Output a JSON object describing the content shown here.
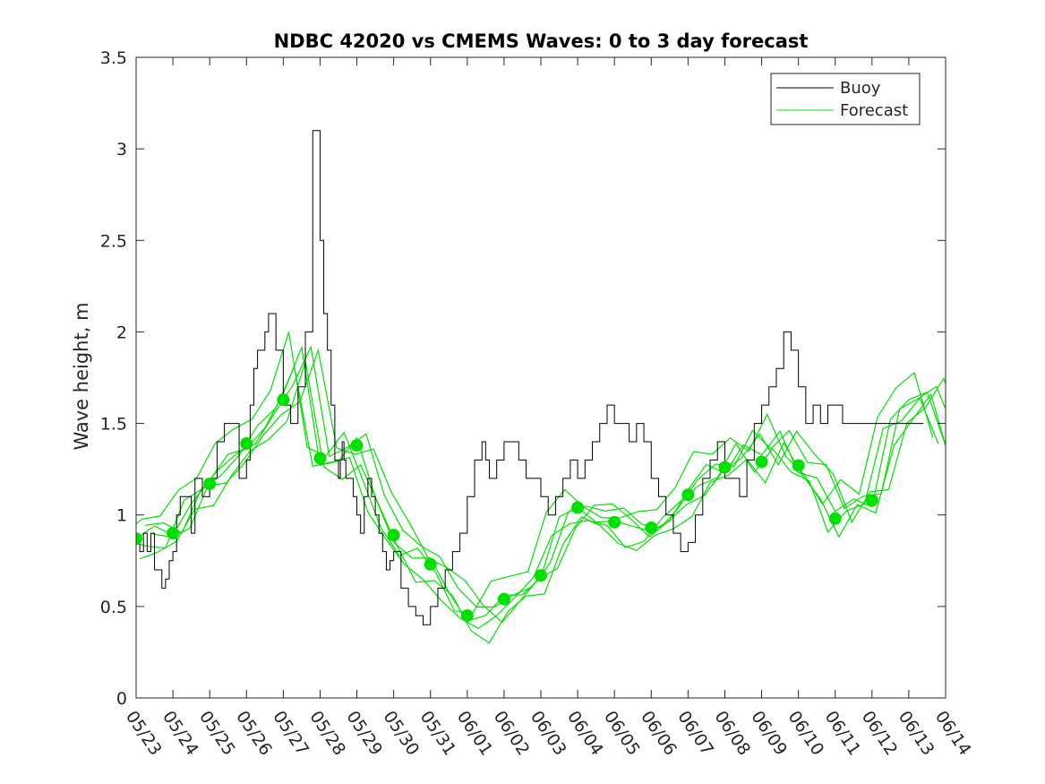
{
  "chart_data": {
    "type": "line",
    "title": "NDBC 42020 vs CMEMS Waves: 0 to 3 day forecast",
    "xlabel": "",
    "ylabel": "Wave height, m",
    "xlim": [
      0,
      22
    ],
    "ylim": [
      0,
      3.5
    ],
    "x_tick_labels": [
      "05/23",
      "05/24",
      "05/25",
      "05/26",
      "05/27",
      "05/28",
      "05/29",
      "05/30",
      "05/31",
      "06/01",
      "06/02",
      "06/03",
      "06/04",
      "06/05",
      "06/06",
      "06/07",
      "06/08",
      "06/09",
      "06/10",
      "06/11",
      "06/12",
      "06/13",
      "06/14"
    ],
    "y_ticks": [
      0,
      0.5,
      1,
      1.5,
      2,
      2.5,
      3,
      3.5
    ],
    "y_tick_labels": [
      "0",
      "0.5",
      "1",
      "1.5",
      "2",
      "2.5",
      "3",
      "3.5"
    ],
    "grid": false,
    "legend_position": "top-right",
    "colors": {
      "buoy": "#000000",
      "forecast": "#00e000",
      "axis": "#262626"
    },
    "series": [
      {
        "name": "Buoy",
        "x": [
          0.0,
          0.1,
          0.2,
          0.3,
          0.4,
          0.5,
          0.6,
          0.7,
          0.8,
          0.9,
          1.0,
          1.1,
          1.2,
          1.4,
          1.5,
          1.6,
          1.8,
          2.0,
          2.2,
          2.4,
          2.6,
          2.8,
          3.0,
          3.1,
          3.2,
          3.3,
          3.5,
          3.6,
          3.8,
          4.0,
          4.2,
          4.4,
          4.6,
          4.8,
          5.0,
          5.1,
          5.2,
          5.3,
          5.4,
          5.5,
          5.55,
          5.6,
          5.65,
          5.7,
          5.8,
          5.9,
          6.0,
          6.1,
          6.2,
          6.3,
          6.4,
          6.5,
          6.6,
          6.7,
          6.8,
          6.9,
          7.0,
          7.2,
          7.4,
          7.6,
          7.8,
          8.0,
          8.2,
          8.4,
          8.6,
          8.8,
          9.0,
          9.2,
          9.4,
          9.5,
          9.6,
          9.8,
          10.0,
          10.4,
          10.6,
          10.8,
          10.9,
          11.0,
          11.2,
          11.3,
          11.4,
          11.6,
          11.8,
          12.0,
          12.2,
          12.4,
          12.6,
          12.8,
          13.0,
          13.2,
          13.4,
          13.6,
          13.8,
          14.0,
          14.2,
          14.4,
          14.6,
          14.8,
          15.0,
          15.2,
          15.4,
          15.6,
          15.8,
          16.0,
          16.2,
          16.4,
          16.6,
          16.8,
          17.0,
          17.2,
          17.4,
          17.6,
          17.8,
          18.0,
          18.2,
          18.4,
          18.6,
          18.8,
          19.0,
          19.2,
          19.4,
          19.6,
          19.8,
          20.0,
          20.2,
          20.4,
          20.6,
          20.8,
          21.0,
          21.2,
          21.4
        ],
        "y": [
          0.87,
          0.8,
          0.9,
          0.8,
          0.9,
          0.7,
          0.7,
          0.6,
          0.65,
          0.75,
          0.8,
          1.0,
          1.1,
          1.1,
          0.9,
          1.2,
          1.1,
          1.2,
          1.4,
          1.5,
          1.5,
          1.2,
          1.3,
          1.6,
          1.8,
          1.9,
          2.0,
          2.1,
          1.9,
          1.6,
          1.5,
          1.7,
          2.0,
          3.1,
          2.5,
          2.1,
          1.9,
          1.6,
          1.3,
          1.2,
          1.3,
          1.4,
          1.3,
          1.2,
          1.2,
          1.1,
          1.0,
          0.9,
          1.1,
          1.2,
          1.1,
          1.0,
          0.9,
          0.8,
          0.7,
          0.75,
          0.8,
          0.6,
          0.5,
          0.45,
          0.4,
          0.5,
          0.6,
          0.7,
          0.8,
          0.9,
          1.1,
          1.3,
          1.4,
          1.3,
          1.2,
          1.3,
          1.4,
          1.3,
          1.2,
          1.2,
          1.2,
          1.1,
          1.0,
          1.0,
          1.1,
          1.2,
          1.3,
          1.2,
          1.3,
          1.4,
          1.5,
          1.6,
          1.5,
          1.5,
          1.4,
          1.5,
          1.4,
          1.2,
          1.1,
          1.0,
          0.9,
          0.8,
          0.85,
          1.0,
          1.2,
          1.3,
          1.4,
          1.2,
          1.2,
          1.1,
          1.3,
          1.5,
          1.6,
          1.7,
          1.8,
          2.0,
          1.9,
          1.7,
          1.5,
          1.6,
          1.5,
          1.6,
          1.6,
          1.5,
          1.5,
          1.5,
          1.5,
          1.5,
          1.5,
          1.5,
          1.5,
          1.5,
          1.5,
          1.5,
          1.5
        ],
        "x_note": "days since 05/23"
      },
      {
        "name": "Forecast",
        "x": [
          0,
          0.5,
          1,
          1.5,
          2,
          2.5,
          3,
          3.5,
          4,
          4.5,
          5,
          5.5,
          6,
          6.5,
          7,
          7.5,
          8,
          8.5,
          9,
          9.5,
          10,
          10.5,
          11,
          11.5,
          12,
          12.5,
          13,
          13.5,
          14,
          14.5,
          15,
          15.5,
          16,
          16.5,
          17,
          17.5,
          18,
          18.5,
          19,
          19.5,
          20,
          20.5,
          21,
          21.5,
          22
        ],
        "y": [
          0.87,
          0.9,
          0.9,
          1.1,
          1.17,
          1.3,
          1.39,
          1.5,
          1.63,
          1.9,
          1.31,
          1.3,
          1.38,
          1.1,
          0.89,
          0.75,
          0.73,
          0.6,
          0.45,
          0.42,
          0.54,
          0.6,
          0.67,
          0.95,
          1.04,
          1.0,
          0.96,
          0.9,
          0.93,
          1.0,
          1.11,
          1.25,
          1.26,
          1.4,
          1.29,
          1.45,
          1.27,
          1.2,
          0.98,
          1.1,
          1.08,
          1.5,
          1.6,
          1.7,
          1.4
        ]
      }
    ],
    "markers": {
      "name": "Forecast",
      "x": [
        0,
        1,
        2,
        3,
        4,
        5,
        6,
        7,
        8,
        9,
        10,
        11,
        12,
        13,
        14,
        15,
        16,
        17,
        18,
        19,
        20
      ],
      "y": [
        0.87,
        0.9,
        1.17,
        1.39,
        1.63,
        1.31,
        1.38,
        0.89,
        0.73,
        0.45,
        0.54,
        0.67,
        1.04,
        0.96,
        0.93,
        1.11,
        1.26,
        1.29,
        1.27,
        0.98,
        1.08
      ]
    }
  }
}
